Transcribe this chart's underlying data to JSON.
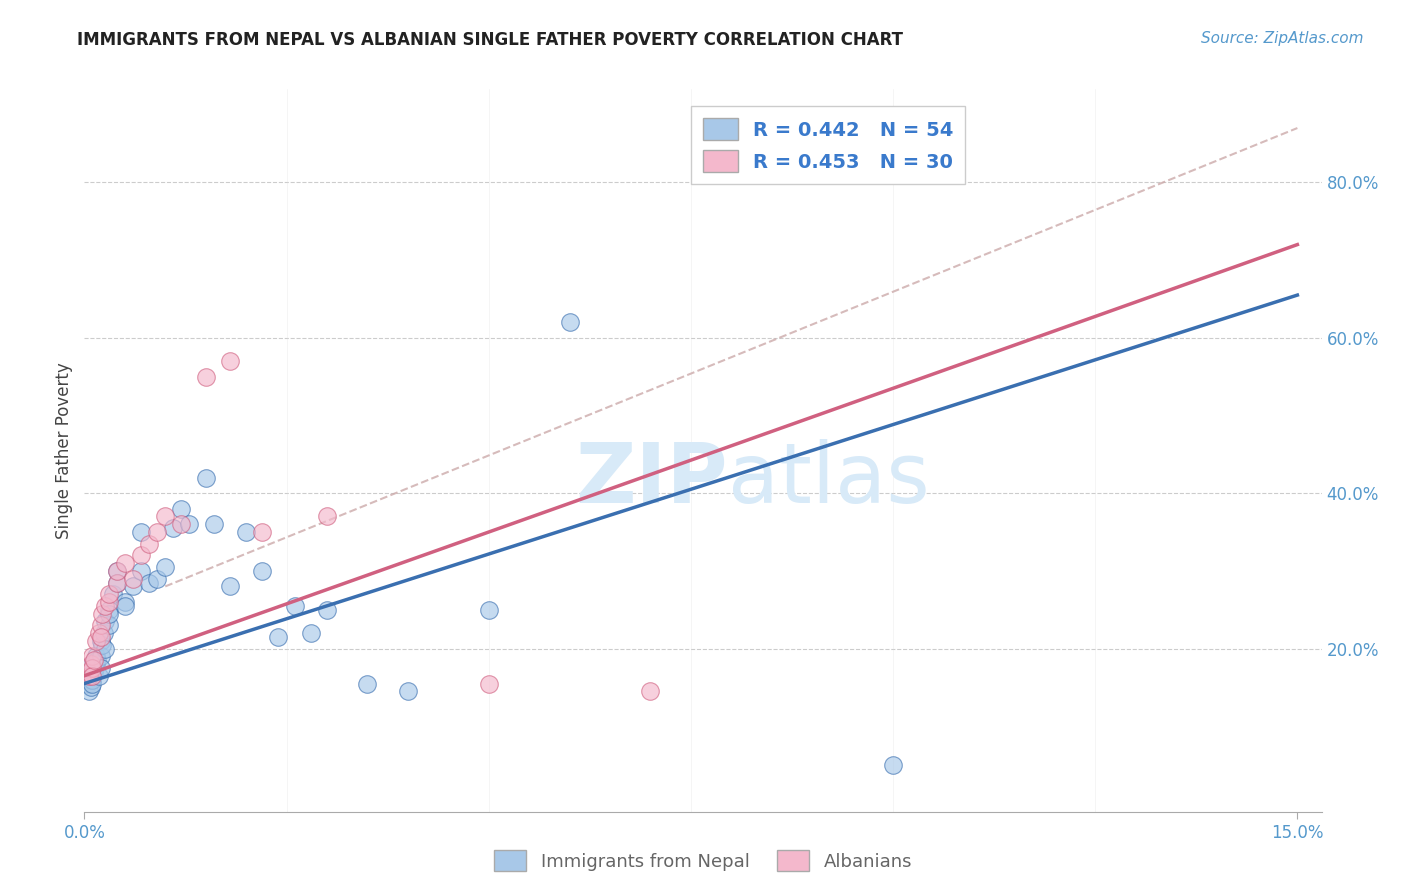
{
  "title": "IMMIGRANTS FROM NEPAL VS ALBANIAN SINGLE FATHER POVERTY CORRELATION CHART",
  "source": "Source: ZipAtlas.com",
  "ylabel": "Single Father Poverty",
  "color_blue": "#a8c8e8",
  "color_pink": "#f4b8cc",
  "line_blue": "#3a6fb0",
  "line_pink": "#d06080",
  "line_dash": "#ccaaaa",
  "watermark_color": "#d8eaf8",
  "nepal_x": [
    0.0004,
    0.0005,
    0.0006,
    0.0007,
    0.0008,
    0.0009,
    0.001,
    0.001,
    0.001,
    0.0012,
    0.0013,
    0.0014,
    0.0015,
    0.0016,
    0.0018,
    0.002,
    0.002,
    0.002,
    0.0022,
    0.0024,
    0.0025,
    0.0026,
    0.003,
    0.003,
    0.003,
    0.0035,
    0.004,
    0.004,
    0.005,
    0.005,
    0.006,
    0.007,
    0.007,
    0.008,
    0.009,
    0.01,
    0.011,
    0.012,
    0.013,
    0.015,
    0.016,
    0.018,
    0.02,
    0.022,
    0.024,
    0.026,
    0.028,
    0.03,
    0.035,
    0.04,
    0.05,
    0.06,
    0.085,
    0.1
  ],
  "nepal_y": [
    0.155,
    0.16,
    0.145,
    0.17,
    0.15,
    0.165,
    0.18,
    0.16,
    0.155,
    0.17,
    0.175,
    0.18,
    0.19,
    0.185,
    0.165,
    0.21,
    0.19,
    0.175,
    0.205,
    0.22,
    0.235,
    0.2,
    0.25,
    0.23,
    0.245,
    0.27,
    0.3,
    0.285,
    0.26,
    0.255,
    0.28,
    0.3,
    0.35,
    0.285,
    0.29,
    0.305,
    0.355,
    0.38,
    0.36,
    0.42,
    0.36,
    0.28,
    0.35,
    0.3,
    0.215,
    0.255,
    0.22,
    0.25,
    0.155,
    0.145,
    0.25,
    0.62,
    0.81,
    0.05
  ],
  "albanian_x": [
    0.0004,
    0.0006,
    0.0008,
    0.001,
    0.001,
    0.001,
    0.0012,
    0.0015,
    0.0018,
    0.002,
    0.002,
    0.0022,
    0.0025,
    0.003,
    0.003,
    0.004,
    0.004,
    0.005,
    0.006,
    0.007,
    0.008,
    0.009,
    0.01,
    0.012,
    0.015,
    0.018,
    0.022,
    0.03,
    0.05,
    0.07
  ],
  "albanian_y": [
    0.17,
    0.165,
    0.18,
    0.19,
    0.175,
    0.165,
    0.185,
    0.21,
    0.22,
    0.23,
    0.215,
    0.245,
    0.255,
    0.26,
    0.27,
    0.285,
    0.3,
    0.31,
    0.29,
    0.32,
    0.335,
    0.35,
    0.37,
    0.36,
    0.55,
    0.57,
    0.35,
    0.37,
    0.155,
    0.145
  ],
  "nepal_line_x0": 0.0,
  "nepal_line_y0": 0.155,
  "nepal_line_x1": 0.15,
  "nepal_line_y1": 0.655,
  "albanian_line_x0": 0.0,
  "albanian_line_y0": 0.165,
  "albanian_line_x1": 0.15,
  "albanian_line_y1": 0.72,
  "dash_line_x0": 0.01,
  "dash_line_y0": 0.28,
  "dash_line_x1": 0.15,
  "dash_line_y1": 0.87,
  "xlim": [
    0.0,
    0.153
  ],
  "ylim": [
    -0.01,
    0.92
  ],
  "yticks": [
    0.2,
    0.4,
    0.6,
    0.8
  ],
  "ytick_labels": [
    "20.0%",
    "40.0%",
    "60.0%",
    "80.0%"
  ],
  "title_fontsize": 12,
  "source_fontsize": 11,
  "tick_fontsize": 12
}
